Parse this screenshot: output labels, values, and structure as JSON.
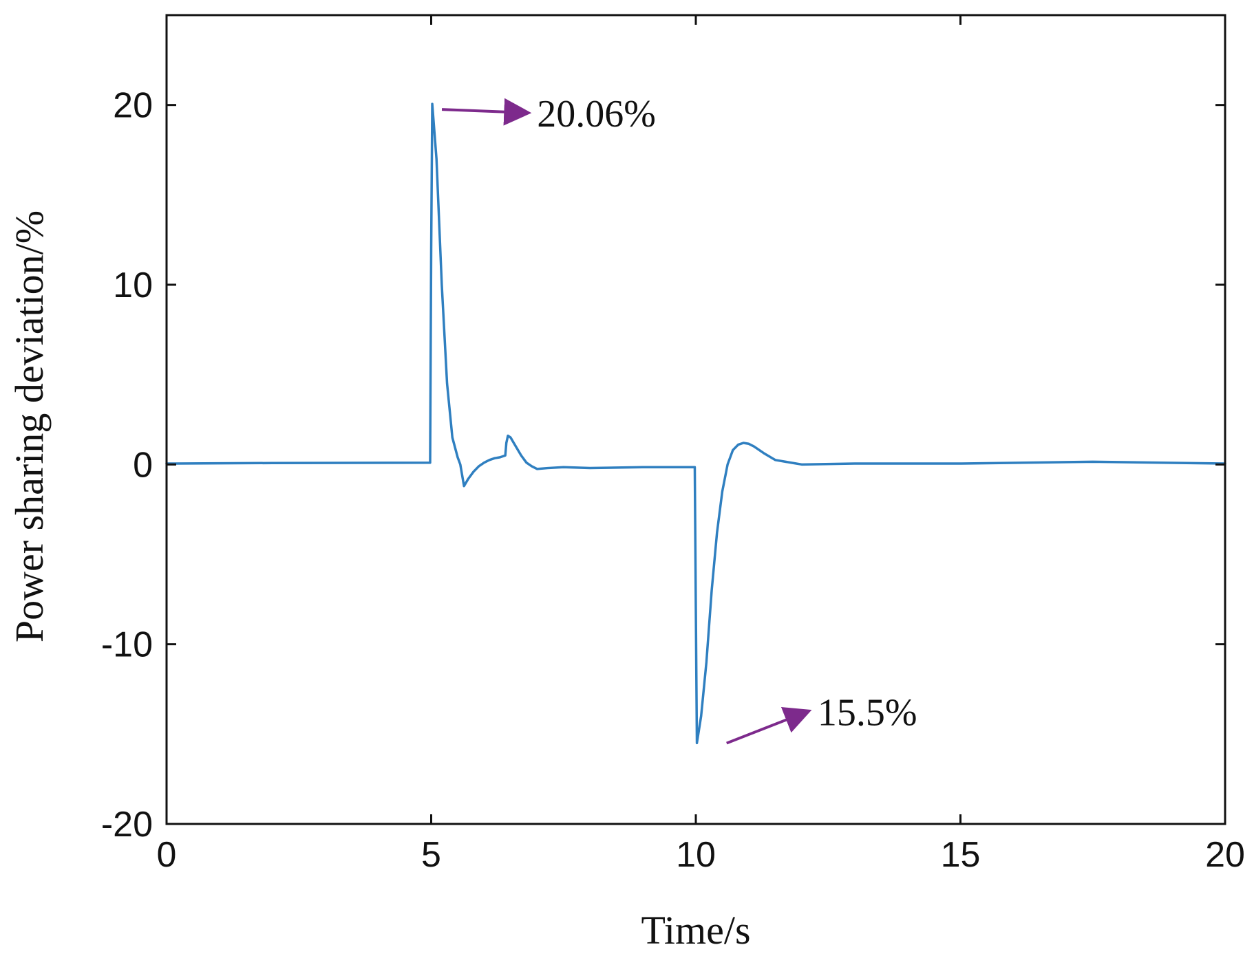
{
  "chart_data": {
    "type": "line",
    "title": "",
    "xlabel": "Time/s",
    "ylabel": "Power sharing deviation/%",
    "xlim": [
      0,
      20
    ],
    "ylim": [
      -20,
      25
    ],
    "xticks": [
      0,
      5,
      10,
      15,
      20
    ],
    "yticks": [
      -20,
      -10,
      0,
      10,
      20
    ],
    "xtick_labels": [
      "0",
      "5",
      "10",
      "15",
      "20"
    ],
    "ytick_labels": [
      "-20",
      "-10",
      "0",
      "10",
      "20"
    ],
    "grid": false,
    "line_color": "#2f7fc0",
    "annotation_color": "#7d2a8c",
    "series": [
      {
        "x": [
          0,
          2,
          4.98,
          5.0,
          5.02,
          5.1,
          5.2,
          5.3,
          5.4,
          5.5,
          5.55,
          5.62,
          5.7,
          5.8,
          5.9,
          6.0,
          6.1,
          6.2,
          6.3,
          6.4,
          6.42,
          6.45,
          6.5,
          6.6,
          6.7,
          6.8,
          6.9,
          7.0,
          7.2,
          7.5,
          8.0,
          9.0,
          9.98,
          10.0,
          10.02,
          10.1,
          10.2,
          10.3,
          10.4,
          10.5,
          10.6,
          10.7,
          10.8,
          10.9,
          11.0,
          11.1,
          11.3,
          11.5,
          11.8,
          12.0,
          13.0,
          15.0,
          17.5,
          20.0
        ],
        "y": [
          0.05,
          0.08,
          0.1,
          12.0,
          20.06,
          17.0,
          10.0,
          4.5,
          1.5,
          0.4,
          0.0,
          -1.2,
          -0.8,
          -0.4,
          -0.1,
          0.1,
          0.25,
          0.35,
          0.4,
          0.5,
          1.2,
          1.6,
          1.5,
          1.0,
          0.5,
          0.1,
          -0.1,
          -0.25,
          -0.2,
          -0.15,
          -0.2,
          -0.15,
          -0.15,
          -8.0,
          -15.5,
          -14.0,
          -11.0,
          -7.0,
          -3.8,
          -1.5,
          0.0,
          0.8,
          1.1,
          1.2,
          1.15,
          1.0,
          0.6,
          0.25,
          0.1,
          0.0,
          0.05,
          0.05,
          0.15,
          0.05
        ]
      }
    ],
    "annotations": [
      {
        "text": "20.06%",
        "x": 5.02,
        "y": 20.06,
        "text_x": 7.0,
        "text_y": 18.8
      },
      {
        "text": "15.5%",
        "x": 10.4,
        "y": -15.2,
        "text_x": 12.3,
        "text_y": -14.5
      }
    ]
  }
}
